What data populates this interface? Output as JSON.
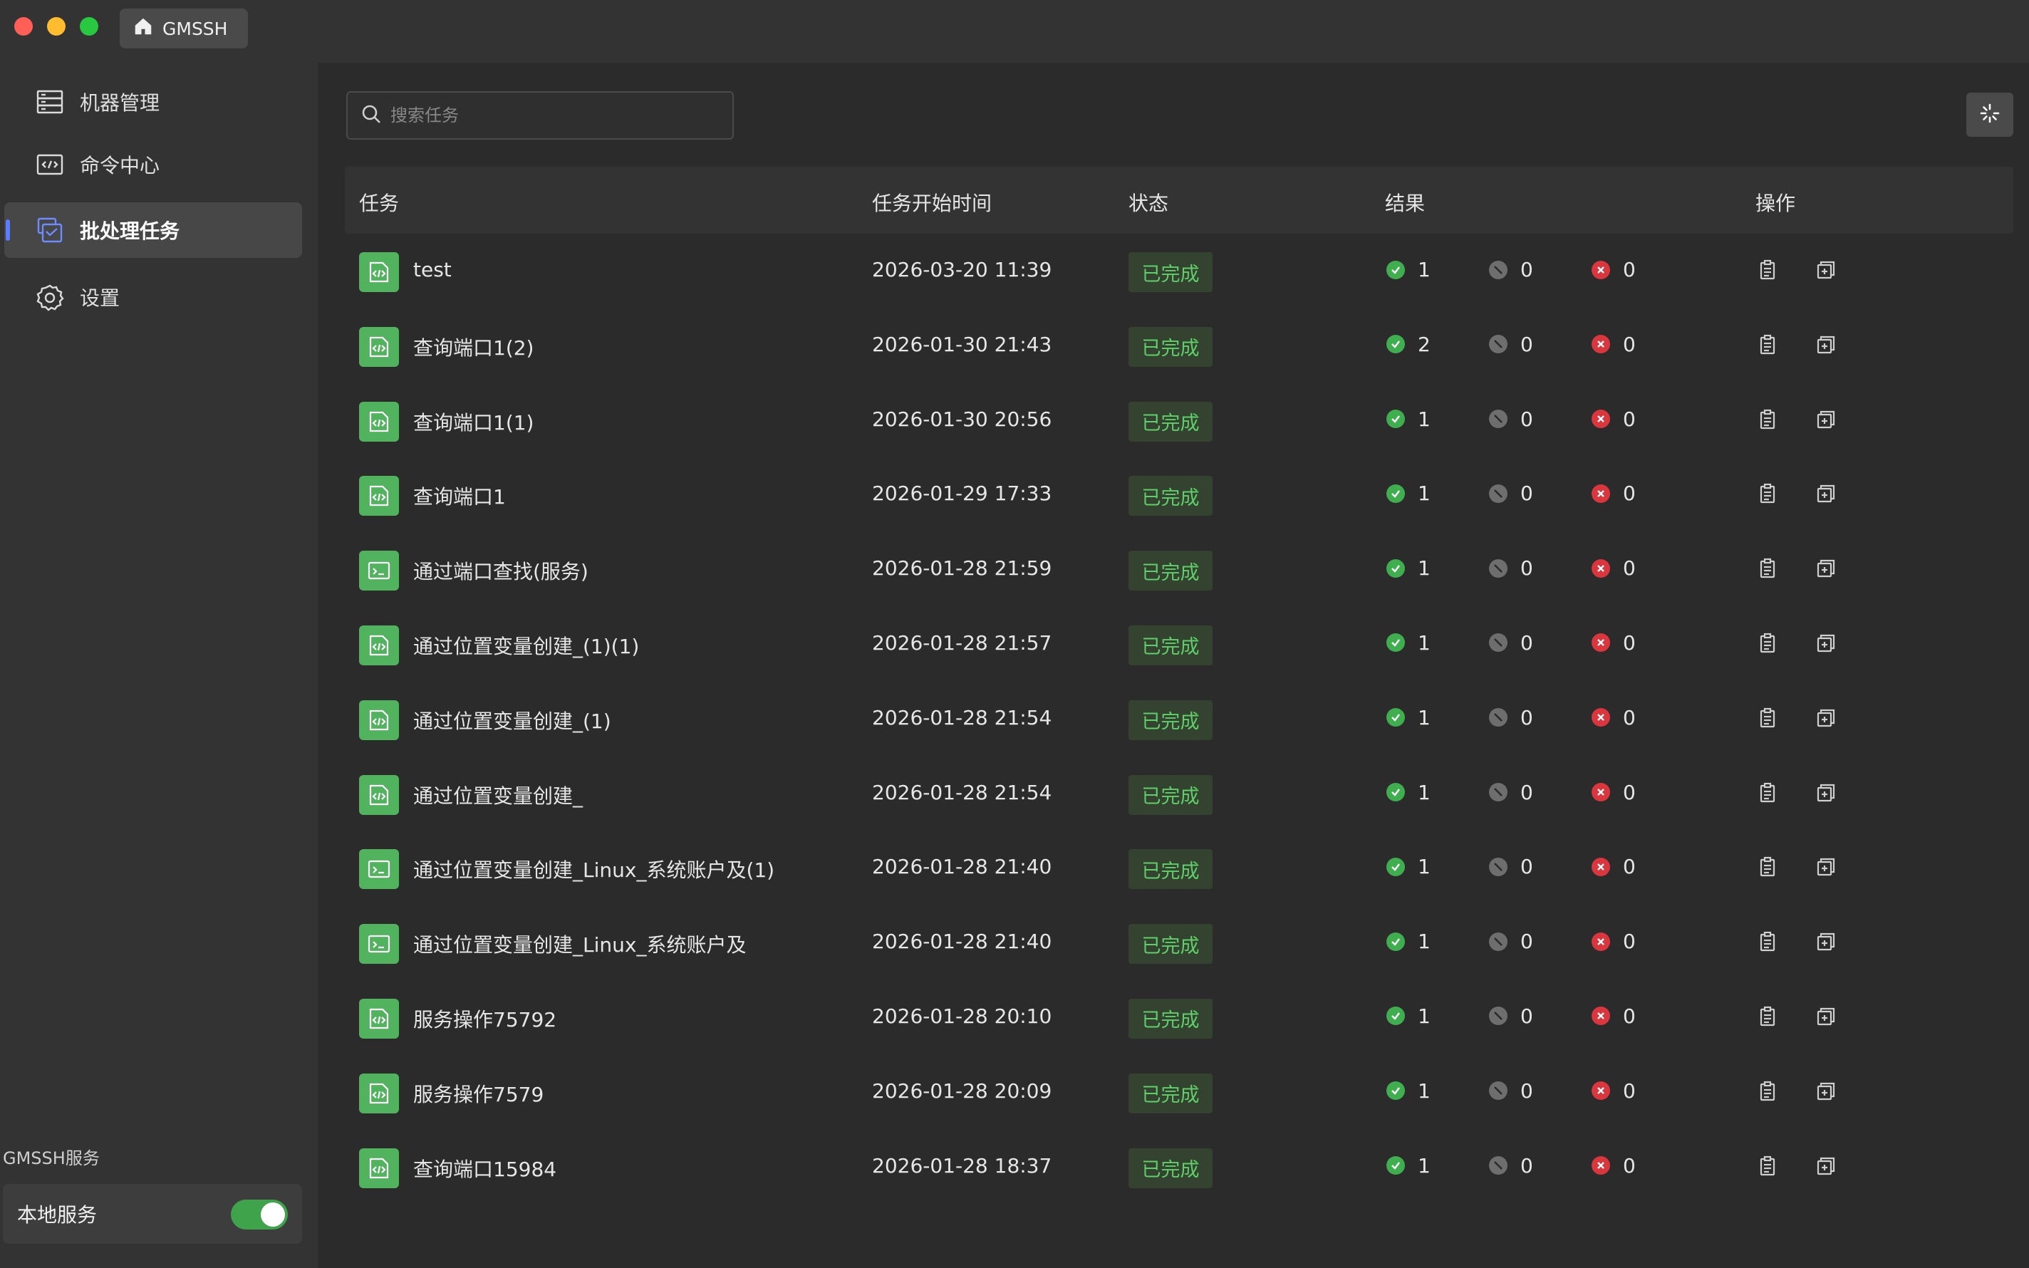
{
  "app": {
    "tab_title": "GMSSH"
  },
  "sidebar": {
    "items": [
      {
        "label": "机器管理",
        "icon": "server-icon"
      },
      {
        "label": "命令中心",
        "icon": "code-window-icon"
      },
      {
        "label": "批处理任务",
        "icon": "batch-task-icon",
        "active": true
      },
      {
        "label": "设置",
        "icon": "gear-icon"
      }
    ],
    "service_title": "GMSSH服务",
    "service_label": "本地服务",
    "service_enabled": true
  },
  "search": {
    "placeholder": "搜索任务",
    "value": ""
  },
  "table": {
    "headers": {
      "task": "任务",
      "start_time": "任务开始时间",
      "status": "状态",
      "result": "结果",
      "actions": "操作"
    },
    "rows": [
      {
        "name": "test",
        "icon": "code-file-icon",
        "time": "2026-03-20 11:39",
        "status": "已完成",
        "ok": "1",
        "skip": "0",
        "fail": "0"
      },
      {
        "name": "查询端口1(2)",
        "icon": "code-file-icon",
        "time": "2026-01-30 21:43",
        "status": "已完成",
        "ok": "2",
        "skip": "0",
        "fail": "0"
      },
      {
        "name": "查询端口1(1)",
        "icon": "code-file-icon",
        "time": "2026-01-30 20:56",
        "status": "已完成",
        "ok": "1",
        "skip": "0",
        "fail": "0"
      },
      {
        "name": "查询端口1",
        "icon": "code-file-icon",
        "time": "2026-01-29 17:33",
        "status": "已完成",
        "ok": "1",
        "skip": "0",
        "fail": "0"
      },
      {
        "name": "通过端口查找(服务)",
        "icon": "terminal-icon",
        "time": "2026-01-28 21:59",
        "status": "已完成",
        "ok": "1",
        "skip": "0",
        "fail": "0"
      },
      {
        "name": "通过位置变量创建_(1)(1)",
        "icon": "code-file-icon",
        "time": "2026-01-28 21:57",
        "status": "已完成",
        "ok": "1",
        "skip": "0",
        "fail": "0"
      },
      {
        "name": "通过位置变量创建_(1)",
        "icon": "code-file-icon",
        "time": "2026-01-28 21:54",
        "status": "已完成",
        "ok": "1",
        "skip": "0",
        "fail": "0"
      },
      {
        "name": "通过位置变量创建_",
        "icon": "code-file-icon",
        "time": "2026-01-28 21:54",
        "status": "已完成",
        "ok": "1",
        "skip": "0",
        "fail": "0"
      },
      {
        "name": "通过位置变量创建_Linux_系统账户及(1)",
        "icon": "terminal-icon",
        "time": "2026-01-28 21:40",
        "status": "已完成",
        "ok": "1",
        "skip": "0",
        "fail": "0"
      },
      {
        "name": "通过位置变量创建_Linux_系统账户及",
        "icon": "terminal-icon",
        "time": "2026-01-28 21:40",
        "status": "已完成",
        "ok": "1",
        "skip": "0",
        "fail": "0"
      },
      {
        "name": "服务操作75792",
        "icon": "code-file-icon",
        "time": "2026-01-28 20:10",
        "status": "已完成",
        "ok": "1",
        "skip": "0",
        "fail": "0"
      },
      {
        "name": "服务操作7579",
        "icon": "code-file-icon",
        "time": "2026-01-28 20:09",
        "status": "已完成",
        "ok": "1",
        "skip": "0",
        "fail": "0"
      },
      {
        "name": "查询端口15984",
        "icon": "code-file-icon",
        "time": "2026-01-28 18:37",
        "status": "已完成",
        "ok": "1",
        "skip": "0",
        "fail": "0"
      }
    ]
  },
  "colors": {
    "accent": "#5b7cff",
    "success": "#3fae4f",
    "status_text": "#5fcf6a",
    "fail": "#d9363e",
    "task_icon_bg": "#52b35e"
  }
}
